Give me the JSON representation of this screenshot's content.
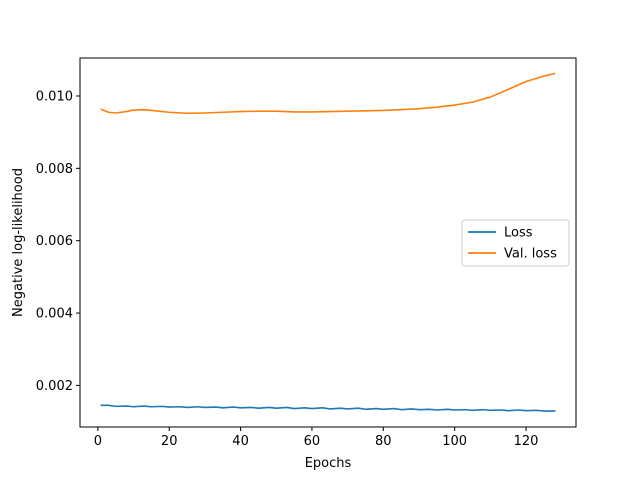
{
  "chart_data": {
    "type": "line",
    "title": "",
    "xlabel": "Epochs",
    "ylabel": "Negative log-likelihood",
    "xlim": [
      -5,
      134
    ],
    "ylim": [
      0.00085,
      0.01105
    ],
    "xticks": [
      0,
      20,
      40,
      60,
      80,
      100,
      120
    ],
    "xtick_labels": [
      "0",
      "20",
      "40",
      "60",
      "80",
      "100",
      "120"
    ],
    "yticks": [
      0.002,
      0.004,
      0.006,
      0.008,
      0.01
    ],
    "ytick_labels": [
      "0.002",
      "0.004",
      "0.006",
      "0.008",
      "0.010"
    ],
    "grid": false,
    "legend_position": "center-right",
    "series": [
      {
        "name": "Loss",
        "color": "#1f77b4",
        "x": [
          1,
          3,
          5,
          8,
          10,
          13,
          15,
          18,
          20,
          23,
          25,
          28,
          30,
          33,
          35,
          38,
          40,
          43,
          45,
          48,
          50,
          53,
          55,
          58,
          60,
          63,
          65,
          68,
          70,
          73,
          75,
          78,
          80,
          83,
          85,
          88,
          90,
          93,
          95,
          98,
          100,
          103,
          105,
          108,
          110,
          113,
          115,
          118,
          120,
          123,
          125,
          128
        ],
        "y": [
          0.00145,
          0.00145,
          0.00142,
          0.00143,
          0.00141,
          0.00143,
          0.00141,
          0.00142,
          0.0014,
          0.00141,
          0.00139,
          0.00141,
          0.00139,
          0.0014,
          0.00138,
          0.0014,
          0.00138,
          0.00139,
          0.00137,
          0.00139,
          0.00137,
          0.00139,
          0.00136,
          0.00138,
          0.00136,
          0.00138,
          0.00135,
          0.00137,
          0.00135,
          0.00137,
          0.00134,
          0.00136,
          0.00134,
          0.00136,
          0.00133,
          0.00135,
          0.00133,
          0.00134,
          0.00132,
          0.00134,
          0.00132,
          0.00133,
          0.00131,
          0.00133,
          0.00131,
          0.00132,
          0.0013,
          0.00132,
          0.0013,
          0.00131,
          0.00129,
          0.00129
        ]
      },
      {
        "name": "Val. loss",
        "color": "#ff7f0e",
        "x": [
          1,
          3,
          5,
          8,
          10,
          13,
          15,
          18,
          20,
          25,
          30,
          35,
          40,
          45,
          50,
          55,
          60,
          65,
          70,
          75,
          80,
          85,
          90,
          95,
          100,
          105,
          110,
          115,
          120,
          125,
          128
        ],
        "y": [
          0.00963,
          0.00955,
          0.00953,
          0.00957,
          0.00961,
          0.00962,
          0.0096,
          0.00957,
          0.00955,
          0.00952,
          0.00953,
          0.00955,
          0.00957,
          0.00958,
          0.00958,
          0.00956,
          0.00956,
          0.00957,
          0.00958,
          0.00959,
          0.0096,
          0.00962,
          0.00965,
          0.00969,
          0.00975,
          0.00983,
          0.00997,
          0.01018,
          0.0104,
          0.01055,
          0.01062
        ]
      }
    ]
  }
}
